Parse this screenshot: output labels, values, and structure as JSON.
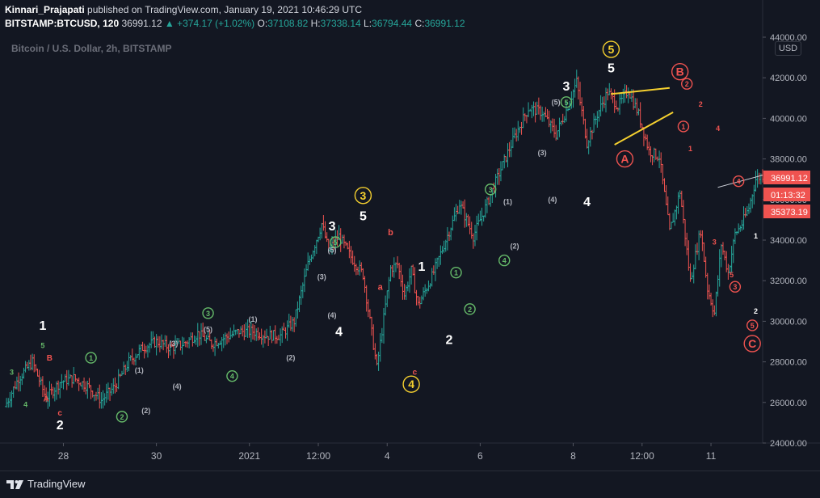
{
  "header": {
    "publisher": "Kinnari_Prajapati",
    "published_text": "published on TradingView.com, January 19, 2021 10:46:29 UTC",
    "symbol": "BITSTAMP:BTCUSD, 120",
    "last": "36991.12",
    "change": "+374.17 (+1.02%)",
    "o_label": "O:",
    "o_value": "37108.82",
    "h_label": "H:",
    "h_value": "37338.14",
    "l_label": "L:",
    "l_value": "36794.44",
    "c_label": "C:",
    "c_value": "36991.12"
  },
  "watermark_label": "Bitcoin / U.S. Dollar, 2h, BITSTAMP",
  "currency_badge": "USD",
  "footer_brand": "TradingView",
  "colors": {
    "background": "#131722",
    "up": "#26a69a",
    "down": "#ef5350",
    "wave_yellow": "#f5d02f",
    "wave_green": "#66bb6a",
    "wave_red": "#ef5350",
    "wave_gray": "#b2b5be",
    "white": "#ffffff"
  },
  "chart_data": {
    "type": "line",
    "ylabel": "",
    "xlabel": "",
    "ylim": [
      24000,
      44000
    ],
    "xlim": [
      0,
      220
    ],
    "y_ticks": [
      "24000.00",
      "26000.00",
      "28000.00",
      "30000.00",
      "32000.00",
      "34000.00",
      "36000.00",
      "38000.00",
      "40000.00",
      "42000.00",
      "44000.00"
    ],
    "x_ticks": [
      {
        "label": "28",
        "x": 17
      },
      {
        "label": "30",
        "x": 44
      },
      {
        "label": "2021",
        "x": 71
      },
      {
        "label": "12:00",
        "x": 91
      },
      {
        "label": "4",
        "x": 111
      },
      {
        "label": "6",
        "x": 138
      },
      {
        "label": "8",
        "x": 165
      },
      {
        "label": "12:00",
        "x": 185
      },
      {
        "label": "11",
        "x": 205
      }
    ],
    "price_labels": [
      {
        "value": 36991.12,
        "text": "36991.12",
        "color": "#ef5350"
      },
      {
        "value": 36000,
        "text": "01:13:32",
        "color": "#ef5350"
      },
      {
        "value": 35373.19,
        "text": "35373.19",
        "color": "#ef5350"
      }
    ],
    "series": [
      {
        "x": [
          0,
          4,
          8,
          12,
          16,
          20,
          24,
          28,
          32,
          36,
          40,
          44,
          48,
          52,
          56,
          60,
          64,
          68,
          72,
          76,
          80,
          84,
          88,
          92,
          94,
          97,
          100,
          104,
          108,
          112,
          114,
          116,
          118,
          120,
          124,
          128,
          132,
          136,
          140,
          144,
          148,
          152,
          156,
          160,
          163,
          166,
          169,
          172,
          175,
          178,
          181,
          184,
          187,
          190,
          193,
          196,
          199,
          202,
          204,
          206,
          208,
          210,
          212,
          214,
          216,
          218,
          220
        ],
        "values": [
          25800,
          27200,
          28000,
          26200,
          27000,
          27200,
          26800,
          26100,
          26800,
          28000,
          28700,
          29000,
          28700,
          28900,
          29400,
          28900,
          29200,
          29500,
          29500,
          29300,
          29300,
          30000,
          32800,
          34800,
          33500,
          34200,
          33300,
          32300,
          27700,
          32600,
          32800,
          31300,
          32500,
          30800,
          32200,
          34000,
          35800,
          34200,
          35800,
          37500,
          39100,
          40500,
          40300,
          39200,
          40400,
          41800,
          38800,
          40200,
          41300,
          40600,
          41400,
          40200,
          38400,
          38100,
          34400,
          36400,
          32000,
          34500,
          31600,
          30400,
          33800,
          32400,
          34300,
          34800,
          35600,
          37000,
          37200
        ]
      }
    ],
    "wave_labels": [
      {
        "text": "1",
        "x": 11,
        "y": 29800,
        "color": "#ffffff",
        "circle": false,
        "size": 16
      },
      {
        "text": "2",
        "x": 16,
        "y": 24900,
        "color": "#ffffff",
        "circle": false,
        "size": 16
      },
      {
        "text": "5",
        "x": 11,
        "y": 28800,
        "color": "#66bb6a",
        "circle": false,
        "size": 9
      },
      {
        "text": "3",
        "x": 2,
        "y": 27500,
        "color": "#66bb6a",
        "circle": false,
        "size": 9
      },
      {
        "text": "4",
        "x": 6,
        "y": 25900,
        "color": "#66bb6a",
        "circle": false,
        "size": 9
      },
      {
        "text": "B",
        "x": 13,
        "y": 28200,
        "color": "#ef5350",
        "circle": false,
        "size": 10
      },
      {
        "text": "A",
        "x": 12,
        "y": 26200,
        "color": "#ef5350",
        "circle": false,
        "size": 10
      },
      {
        "text": "c",
        "x": 16,
        "y": 25500,
        "color": "#ef5350",
        "circle": false,
        "size": 10
      },
      {
        "text": "1",
        "x": 25,
        "y": 28200,
        "color": "#66bb6a",
        "circle": true,
        "size": 9
      },
      {
        "text": "2",
        "x": 34,
        "y": 25300,
        "color": "#66bb6a",
        "circle": true,
        "size": 9
      },
      {
        "text": "(1)",
        "x": 39,
        "y": 27600,
        "color": "#b2b5be",
        "circle": false,
        "size": 9
      },
      {
        "text": "(2)",
        "x": 41,
        "y": 25600,
        "color": "#b2b5be",
        "circle": false,
        "size": 9
      },
      {
        "text": "(3)",
        "x": 49,
        "y": 28900,
        "color": "#b2b5be",
        "circle": false,
        "size": 9
      },
      {
        "text": "(4)",
        "x": 50,
        "y": 26800,
        "color": "#b2b5be",
        "circle": false,
        "size": 9
      },
      {
        "text": "3",
        "x": 59,
        "y": 30400,
        "color": "#66bb6a",
        "circle": true,
        "size": 9
      },
      {
        "text": "(5)",
        "x": 59,
        "y": 29600,
        "color": "#b2b5be",
        "circle": false,
        "size": 9
      },
      {
        "text": "4",
        "x": 66,
        "y": 27300,
        "color": "#66bb6a",
        "circle": true,
        "size": 9
      },
      {
        "text": "(1)",
        "x": 72,
        "y": 30100,
        "color": "#b2b5be",
        "circle": false,
        "size": 9
      },
      {
        "text": "(2)",
        "x": 83,
        "y": 28200,
        "color": "#b2b5be",
        "circle": false,
        "size": 9
      },
      {
        "text": "(3)",
        "x": 92,
        "y": 32200,
        "color": "#b2b5be",
        "circle": false,
        "size": 9
      },
      {
        "text": "(4)",
        "x": 95,
        "y": 30300,
        "color": "#b2b5be",
        "circle": false,
        "size": 9
      },
      {
        "text": "5",
        "x": 96,
        "y": 33900,
        "color": "#66bb6a",
        "circle": true,
        "size": 9
      },
      {
        "text": "(5)",
        "x": 95,
        "y": 33500,
        "color": "#b2b5be",
        "circle": false,
        "size": 9
      },
      {
        "text": "3",
        "x": 95,
        "y": 34700,
        "color": "#ffffff",
        "circle": false,
        "size": 16
      },
      {
        "text": "4",
        "x": 97,
        "y": 29500,
        "color": "#ffffff",
        "circle": false,
        "size": 16
      },
      {
        "text": "3",
        "x": 104,
        "y": 36200,
        "color": "#f5d02f",
        "circle": true,
        "size": 14
      },
      {
        "text": "5",
        "x": 104,
        "y": 35200,
        "color": "#ffffff",
        "circle": false,
        "size": 16
      },
      {
        "text": "b",
        "x": 112,
        "y": 34400,
        "color": "#ef5350",
        "circle": false,
        "size": 11
      },
      {
        "text": "a",
        "x": 109,
        "y": 31700,
        "color": "#ef5350",
        "circle": false,
        "size": 11
      },
      {
        "text": "c",
        "x": 119,
        "y": 27500,
        "color": "#ef5350",
        "circle": false,
        "size": 10
      },
      {
        "text": "4",
        "x": 118,
        "y": 26900,
        "color": "#f5d02f",
        "circle": true,
        "size": 14
      },
      {
        "text": "1",
        "x": 121,
        "y": 32700,
        "color": "#ffffff",
        "circle": false,
        "size": 16
      },
      {
        "text": "2",
        "x": 129,
        "y": 29100,
        "color": "#ffffff",
        "circle": false,
        "size": 16
      },
      {
        "text": "1",
        "x": 131,
        "y": 32400,
        "color": "#66bb6a",
        "circle": true,
        "size": 9
      },
      {
        "text": "2",
        "x": 135,
        "y": 30600,
        "color": "#66bb6a",
        "circle": true,
        "size": 9
      },
      {
        "text": "3",
        "x": 141,
        "y": 36500,
        "color": "#66bb6a",
        "circle": true,
        "size": 9
      },
      {
        "text": "(1)",
        "x": 146,
        "y": 35900,
        "color": "#b2b5be",
        "circle": false,
        "size": 9
      },
      {
        "text": "(2)",
        "x": 148,
        "y": 33700,
        "color": "#b2b5be",
        "circle": false,
        "size": 9
      },
      {
        "text": "4",
        "x": 145,
        "y": 33000,
        "color": "#66bb6a",
        "circle": true,
        "size": 9
      },
      {
        "text": "(3)",
        "x": 156,
        "y": 38300,
        "color": "#b2b5be",
        "circle": false,
        "size": 9
      },
      {
        "text": "(4)",
        "x": 159,
        "y": 36000,
        "color": "#b2b5be",
        "circle": false,
        "size": 9
      },
      {
        "text": "(5)",
        "x": 160,
        "y": 40800,
        "color": "#b2b5be",
        "circle": false,
        "size": 9
      },
      {
        "text": "5",
        "x": 163,
        "y": 40800,
        "color": "#66bb6a",
        "circle": true,
        "size": 9
      },
      {
        "text": "3",
        "x": 163,
        "y": 41600,
        "color": "#ffffff",
        "circle": false,
        "size": 16
      },
      {
        "text": "4",
        "x": 169,
        "y": 35900,
        "color": "#ffffff",
        "circle": false,
        "size": 16
      },
      {
        "text": "5",
        "x": 176,
        "y": 43400,
        "color": "#f5d02f",
        "circle": true,
        "size": 14
      },
      {
        "text": "5",
        "x": 176,
        "y": 42500,
        "color": "#ffffff",
        "circle": false,
        "size": 16
      },
      {
        "text": "A",
        "x": 180,
        "y": 38000,
        "color": "#ef5350",
        "circle": true,
        "size": 14
      },
      {
        "text": "B",
        "x": 196,
        "y": 42300,
        "color": "#ef5350",
        "circle": true,
        "size": 14
      },
      {
        "text": "2",
        "x": 198,
        "y": 41700,
        "color": "#ef5350",
        "circle": true,
        "size": 9
      },
      {
        "text": "2",
        "x": 202,
        "y": 40700,
        "color": "#ef5350",
        "circle": false,
        "size": 9
      },
      {
        "text": "1",
        "x": 197,
        "y": 39600,
        "color": "#ef5350",
        "circle": true,
        "size": 9
      },
      {
        "text": "1",
        "x": 199,
        "y": 38500,
        "color": "#ef5350",
        "circle": false,
        "size": 9
      },
      {
        "text": "4",
        "x": 207,
        "y": 39500,
        "color": "#ef5350",
        "circle": false,
        "size": 9
      },
      {
        "text": "3",
        "x": 206,
        "y": 33900,
        "color": "#ef5350",
        "circle": false,
        "size": 9
      },
      {
        "text": "4",
        "x": 213,
        "y": 36900,
        "color": "#ef5350",
        "circle": true,
        "size": 9
      },
      {
        "text": "5",
        "x": 211,
        "y": 32300,
        "color": "#ef5350",
        "circle": false,
        "size": 9
      },
      {
        "text": "3",
        "x": 212,
        "y": 31700,
        "color": "#ef5350",
        "circle": true,
        "size": 9
      },
      {
        "text": "5",
        "x": 217,
        "y": 29800,
        "color": "#ef5350",
        "circle": true,
        "size": 9
      },
      {
        "text": "C",
        "x": 217,
        "y": 28900,
        "color": "#ef5350",
        "circle": true,
        "size": 14
      },
      {
        "text": "1",
        "x": 218,
        "y": 34200,
        "color": "#ffffff",
        "circle": false,
        "size": 9
      },
      {
        "text": "2",
        "x": 218,
        "y": 30500,
        "color": "#ffffff",
        "circle": false,
        "size": 9
      }
    ]
  }
}
